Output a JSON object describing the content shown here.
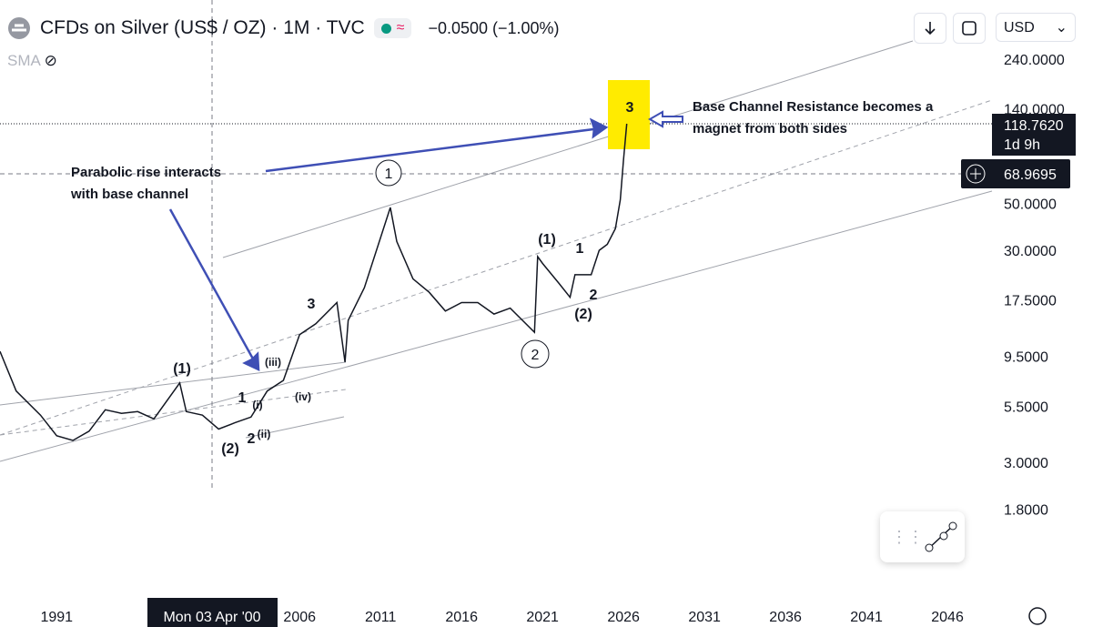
{
  "header": {
    "title": "CFDs on Silver (US$ / OZ) · 1M · TVC",
    "change": "−0.0500 (−1.00%)",
    "indicator": "SMA",
    "currency": "USD"
  },
  "chart_data": {
    "type": "line",
    "color": "#131722",
    "log_scale": true,
    "grid": false,
    "x": [
      1987.5,
      1988.5,
      1990,
      1991,
      1992,
      1993,
      1994,
      1995,
      1996,
      1997,
      1998.6,
      1999,
      2000,
      2001,
      2002,
      2003,
      2004,
      2005,
      2006,
      2007,
      2008.3,
      2008.8,
      2009,
      2010,
      2011.6,
      2012,
      2013,
      2014,
      2015,
      2016,
      2017,
      2018,
      2019,
      2020.5,
      2020.7,
      2021,
      2022,
      2022.7,
      2023,
      2024,
      2024.5,
      2025,
      2025.5,
      2025.8,
      2026,
      2026.2
    ],
    "values": [
      10,
      6.5,
      5,
      4,
      3.8,
      4.2,
      5.3,
      5.1,
      5.2,
      4.8,
      7.1,
      5.2,
      5,
      4.3,
      4.6,
      4.9,
      6.5,
      7.3,
      12,
      13.5,
      17,
      8.9,
      14,
      20,
      47.8,
      33,
      22,
      19,
      15.5,
      17,
      17,
      15,
      16,
      12.3,
      28,
      26,
      21,
      18,
      23,
      23,
      30,
      32,
      38,
      52,
      80,
      118.762
    ],
    "xlim": [
      1987.5,
      2048.75
    ],
    "ylim": [
      0.7,
      292
    ],
    "xticks": [
      1991,
      2006,
      2011,
      2016,
      2021,
      2026,
      2031,
      2036,
      2041,
      2046
    ],
    "yticks": [
      {
        "value": 240,
        "label": "240.0000"
      },
      {
        "value": 140,
        "label": "140.0000"
      },
      {
        "value": 50,
        "label": "50.0000"
      },
      {
        "value": 30,
        "label": "30.0000"
      },
      {
        "value": 17.5,
        "label": "17.5000"
      },
      {
        "value": 9.5,
        "label": "9.5000"
      },
      {
        "value": 5.5,
        "label": "5.5000"
      },
      {
        "value": 3,
        "label": "3.0000"
      },
      {
        "value": 1.8,
        "label": "1.8000"
      }
    ],
    "last_price": {
      "value": 118.762,
      "label": "118.7620"
    },
    "countdown": "1d 9h",
    "crosshair_price": {
      "value": 68.9695,
      "label": "68.9695"
    },
    "crosshair_date": "Mon 03 Apr '00",
    "notes": [
      [
        "Parabolic rise interacts",
        "with base channel"
      ],
      [
        "Base Channel Resistance becomes a",
        "magnet from both sides"
      ]
    ],
    "waves": [
      "(1)",
      "(2)",
      "1",
      "2",
      "(i)",
      "(ii)",
      "(iii)",
      "(iv)",
      "3",
      "1",
      "2",
      "(1)",
      "1",
      "2",
      "(2)",
      "3"
    ]
  }
}
